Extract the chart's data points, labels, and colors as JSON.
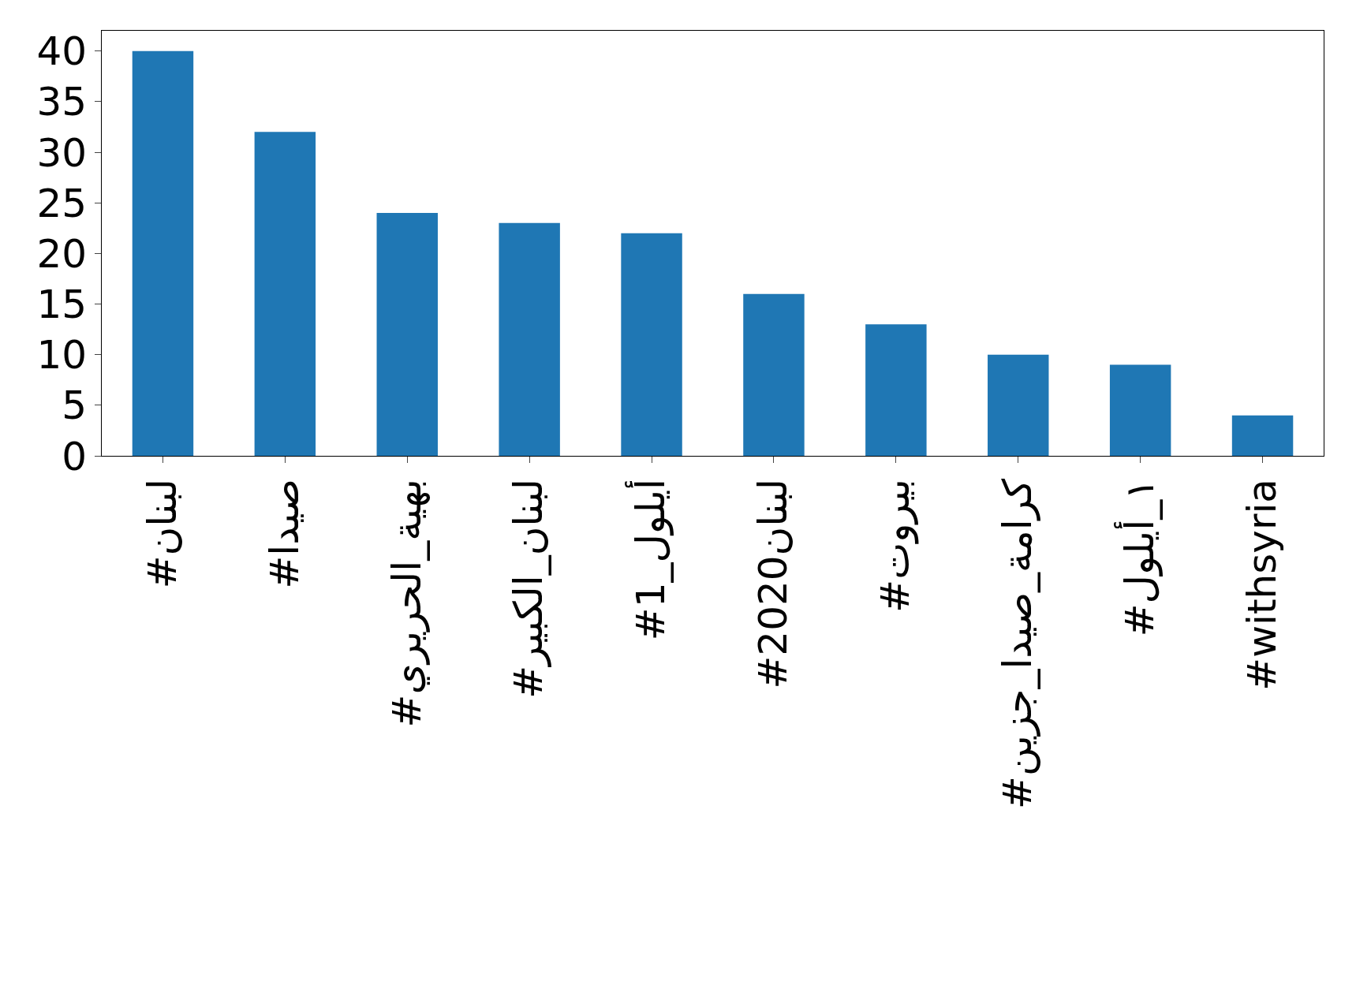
{
  "chart_data": {
    "type": "bar",
    "categories": [
      "#لبنان",
      "#صيدا",
      "#بهية_الحريري",
      "#لبنان_الكبير",
      "#1_أيلول",
      "#لبنان2020",
      "#بيروت",
      "#كرامة_صيدا_جزين",
      "#١_أيلول",
      "#withsyria"
    ],
    "values": [
      40,
      32,
      24,
      23,
      22,
      16,
      13,
      10,
      9,
      4
    ],
    "color": "#1f77b4",
    "ylim": [
      0,
      42
    ],
    "yticks": [
      0,
      5,
      10,
      15,
      20,
      25,
      30,
      35,
      40
    ],
    "grid": false
  }
}
